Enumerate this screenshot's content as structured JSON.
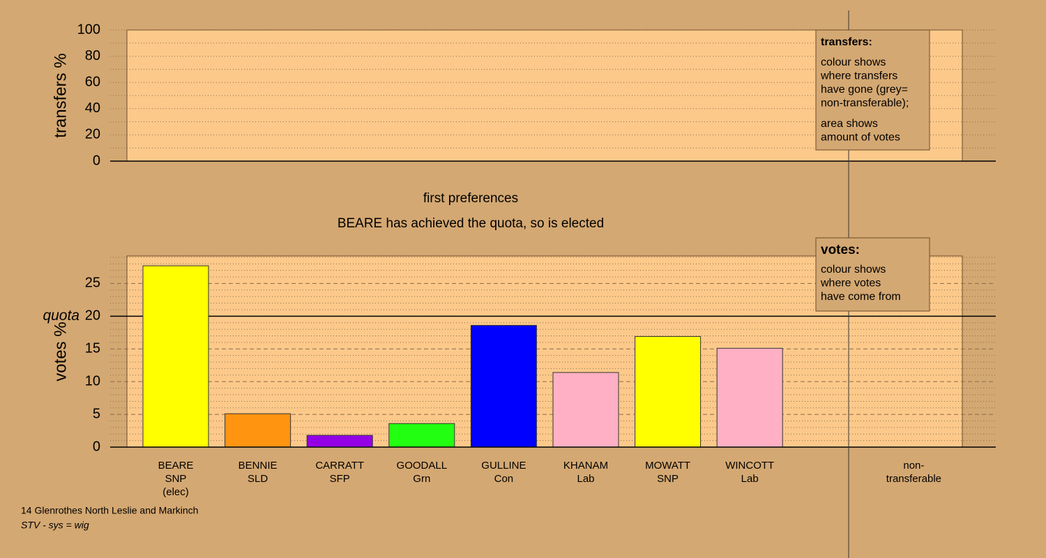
{
  "chart_data": [
    {
      "type": "bar",
      "ylabel": "transfers %",
      "categories": [],
      "values": [],
      "ylim": [
        0,
        100
      ],
      "yticks": [
        0,
        20,
        40,
        60,
        80,
        100
      ],
      "minor_yticks": [
        10,
        30,
        50,
        70,
        90
      ],
      "grid_style": "dotted",
      "note": {
        "title": "transfers:",
        "lines": [
          "colour shows",
          "where transfers",
          "have gone (grey=",
          "non-transferable);"
        ],
        "lines2": [
          "area shows",
          "amount of votes"
        ]
      }
    },
    {
      "type": "bar",
      "title": "first preferences",
      "subtitle": "BEARE has achieved the quota, so is elected",
      "ylabel": "votes %",
      "categories": [
        [
          "BEARE",
          "SNP",
          "(elec)"
        ],
        [
          "BENNIE",
          "SLD"
        ],
        [
          "CARRATT",
          "SFP"
        ],
        [
          "GOODALL",
          "Grn"
        ],
        [
          "GULLINE",
          "Con"
        ],
        [
          "KHANAM",
          "Lab"
        ],
        [
          "MOWATT",
          "SNP"
        ],
        [
          "WINCOTT",
          "Lab"
        ]
      ],
      "values": [
        27.7,
        5.1,
        1.8,
        3.6,
        18.6,
        11.4,
        16.9,
        15.1
      ],
      "colors": [
        "#ffff00",
        "#ff9411",
        "#9400e6",
        "#22ff11",
        "#0000ff",
        "#ffb0c4",
        "#ffff00",
        "#ffb0c4"
      ],
      "nontransferable": {
        "label": [
          "non-",
          "transferable"
        ],
        "value": 0
      },
      "quota": {
        "label": "quota",
        "value": 20
      },
      "ylim": [
        0,
        29.2
      ],
      "yticks": [
        0,
        5,
        10,
        15,
        20,
        25
      ],
      "minor_yticks": [
        1,
        2,
        3,
        4,
        6,
        7,
        8,
        9,
        11,
        12,
        13,
        14,
        16,
        17,
        18,
        19,
        21,
        22,
        23,
        24,
        26,
        27,
        28,
        29
      ],
      "grid_style": "dashed",
      "note": {
        "title": "votes:",
        "lines": [
          "colour shows",
          "where votes",
          "have come from"
        ]
      }
    }
  ],
  "footer": [
    "14 Glenrothes North Leslie and Markinch",
    "STV - sys = wig"
  ]
}
